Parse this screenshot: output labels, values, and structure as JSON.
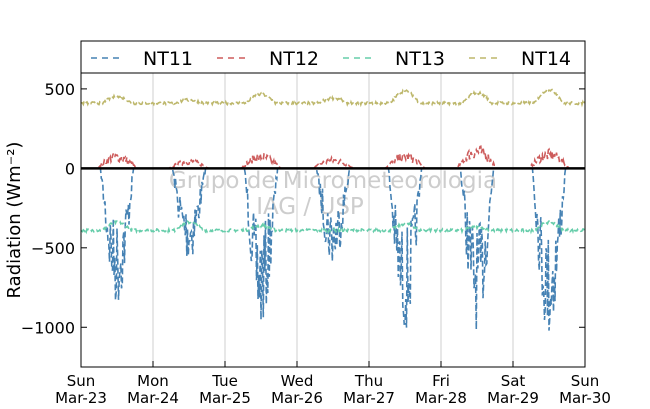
{
  "chart_data": {
    "type": "line",
    "title": "",
    "xlabel": "",
    "ylabel": "Radiation (Wm⁻²)",
    "ylim": [
      -1250,
      600
    ],
    "xlim": [
      0,
      7
    ],
    "yticks": [
      500,
      0,
      -500,
      -1000
    ],
    "ytick_labels": [
      "500",
      "0",
      "−500",
      "−1000"
    ],
    "xtick_labels": [
      {
        "day": "Sun",
        "date": "Mar-23"
      },
      {
        "day": "Mon",
        "date": "Mar-24"
      },
      {
        "day": "Tue",
        "date": "Mar-25"
      },
      {
        "day": "Wed",
        "date": "Mar-26"
      },
      {
        "day": "Thu",
        "date": "Mar-27"
      },
      {
        "day": "Fri",
        "date": "Mar-28"
      },
      {
        "day": "Sat",
        "date": "Mar-29"
      },
      {
        "day": "Sun",
        "date": "Mar-30"
      }
    ],
    "grid": "vertical",
    "legend_position": "top",
    "watermark": [
      "Grupo de Micrometeorologia",
      "IAG / USP"
    ],
    "series": [
      {
        "name": "NT11",
        "color": "#4682b4",
        "style": "dashed",
        "night_value": 0,
        "daily_min": [
          -880,
          -600,
          -1030,
          -630,
          -1040,
          -1020,
          -1080
        ]
      },
      {
        "name": "NT12",
        "color": "#cd5c5c",
        "style": "dashed",
        "night_value": 0,
        "daily_max": [
          100,
          60,
          100,
          70,
          100,
          150,
          120
        ]
      },
      {
        "name": "NT13",
        "color": "#66cdaa",
        "style": "dashed",
        "night_value": -390,
        "daily_peak": [
          -340,
          -340,
          -360,
          -390,
          -350,
          -370,
          -340
        ]
      },
      {
        "name": "NT14",
        "color": "#bdb76b",
        "style": "dashed",
        "night_value": 410,
        "daily_peak": [
          450,
          430,
          465,
          440,
          485,
          475,
          495
        ]
      }
    ]
  }
}
